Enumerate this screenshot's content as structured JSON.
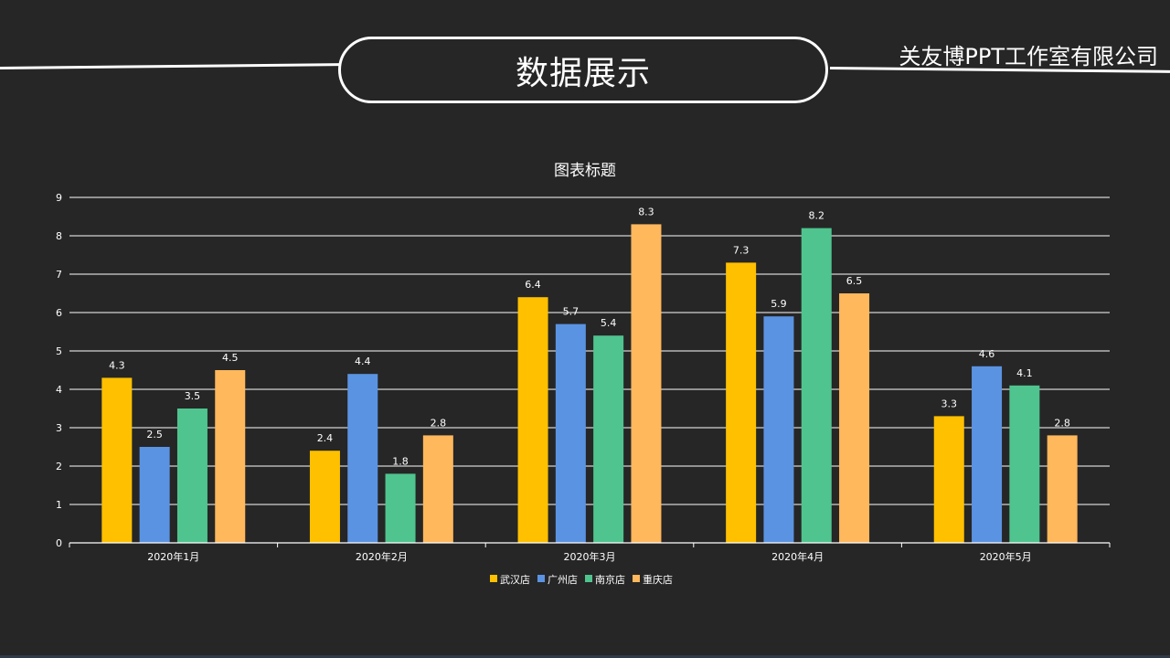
{
  "header": {
    "title": "数据展示",
    "company": "关友博PPT工作室有限公司"
  },
  "chart_data": {
    "type": "bar",
    "title": "图表标题",
    "categories": [
      "2020年1月",
      "2020年2月",
      "2020年3月",
      "2020年4月",
      "2020年5月"
    ],
    "series": [
      {
        "name": "武汉店",
        "color": "#FFC000",
        "values": [
          4.3,
          2.4,
          6.4,
          7.3,
          3.3
        ]
      },
      {
        "name": "广州店",
        "color": "#5B93E3",
        "values": [
          2.5,
          4.4,
          5.7,
          5.9,
          4.6
        ]
      },
      {
        "name": "南京店",
        "color": "#4FC48F",
        "values": [
          3.5,
          1.8,
          5.4,
          8.2,
          4.1
        ]
      },
      {
        "name": "重庆店",
        "color": "#FFB85C",
        "values": [
          4.5,
          2.8,
          8.3,
          6.5,
          2.8
        ]
      }
    ],
    "ylim": [
      0,
      9
    ],
    "yticks": [
      0,
      1,
      2,
      3,
      4,
      5,
      6,
      7,
      8,
      9
    ],
    "grid": true,
    "legend_position": "bottom",
    "data_labels": true,
    "xlabel": "",
    "ylabel": ""
  }
}
